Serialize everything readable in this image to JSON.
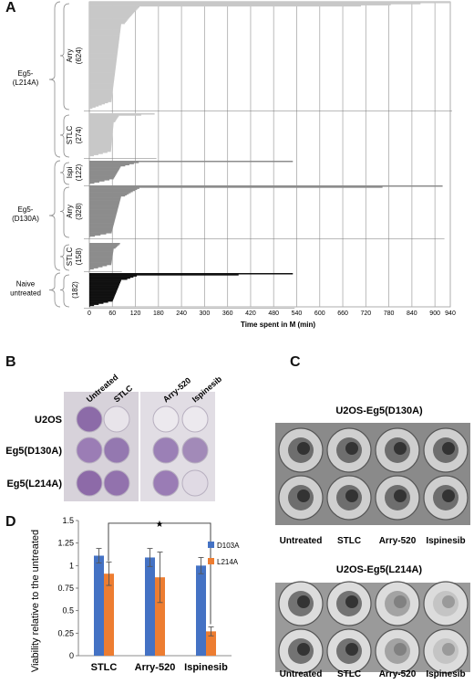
{
  "panels": {
    "A": "A",
    "B": "B",
    "C": "C",
    "D": "D"
  },
  "panel_a": {
    "x_axis_label": "Time spent in M (min)",
    "x_ticks": [
      "0",
      "60",
      "120",
      "180",
      "240",
      "300",
      "360",
      "420",
      "480",
      "540",
      "600",
      "660",
      "720",
      "780",
      "840",
      "900",
      "940"
    ],
    "groups": [
      {
        "label_line1": "Eg5-",
        "label_line2": "(L214A)"
      },
      {
        "label_line1": "Eg5-",
        "label_line2": "(D130A)"
      },
      {
        "label_line1": "Naive",
        "label_line2": "untreated"
      }
    ],
    "subgroups": [
      {
        "name": "Arry",
        "count": "(624)"
      },
      {
        "name": "STLC",
        "count": "(274)"
      },
      {
        "name": "Ispi",
        "count": "(122)"
      },
      {
        "name": "Arry",
        "count": "(328)"
      },
      {
        "name": "STLC",
        "count": "(158)"
      },
      {
        "name": "",
        "count": "(182)"
      }
    ]
  },
  "panel_b": {
    "col_labels": [
      "Untreated",
      "STLC",
      "Arry-520",
      "Ispinesib"
    ],
    "row_labels": [
      "U2OS",
      "Eg5(D130A)",
      "Eg5(L214A)"
    ]
  },
  "panel_c": {
    "plate1_title": "U2OS-Eg5(D130A)",
    "plate2_title": "U2OS-Eg5(L214A)",
    "col_labels": [
      "Untreated",
      "STLC",
      "Arry-520",
      "Ispinesib"
    ]
  },
  "colors": {
    "light_gray": "#c8c8c8",
    "mid_gray": "#8c8c8c",
    "black": "#111111",
    "blue": "#4472c4",
    "orange": "#ed7d31",
    "grid": "#c0c0c0"
  },
  "chart_data": [
    {
      "type": "bar",
      "panel": "A",
      "xlabel": "Time spent in M (min)",
      "xlim": [
        0,
        940
      ],
      "series": [
        {
          "group": "Eg5-(L214A)",
          "name": "Arry",
          "n": 624,
          "max_minutes": 940
        },
        {
          "group": "Eg5-(L214A)",
          "name": "STLC",
          "n": 274,
          "max_minutes": 170
        },
        {
          "group": "Eg5-(D130A)",
          "name": "Ispi",
          "n": 122,
          "max_minutes": 530
        },
        {
          "group": "Eg5-(D130A)",
          "name": "Arry",
          "n": 328,
          "max_minutes": 920
        },
        {
          "group": "Eg5-(D130A)",
          "name": "STLC",
          "n": 158,
          "max_minutes": 80
        },
        {
          "group": "Naive untreated",
          "name": "",
          "n": 182,
          "max_minutes": 530
        }
      ]
    },
    {
      "type": "bar",
      "panel": "D",
      "ylabel": "Viability relative to the untreated",
      "ylim": [
        0,
        1.5
      ],
      "yticks": [
        "0",
        "0.25",
        "0.5",
        "0.75",
        "1",
        "1.25",
        "1.5"
      ],
      "categories": [
        "STLC",
        "Arry-520",
        "Ispinesib"
      ],
      "series": [
        {
          "name": "D103A",
          "values": [
            1.11,
            1.09,
            1.0
          ],
          "errors": [
            0.08,
            0.1,
            0.09
          ]
        },
        {
          "name": "L214A",
          "values": [
            0.91,
            0.87,
            0.27
          ],
          "errors": [
            0.13,
            0.28,
            0.05
          ]
        }
      ],
      "annotation": "★"
    }
  ]
}
